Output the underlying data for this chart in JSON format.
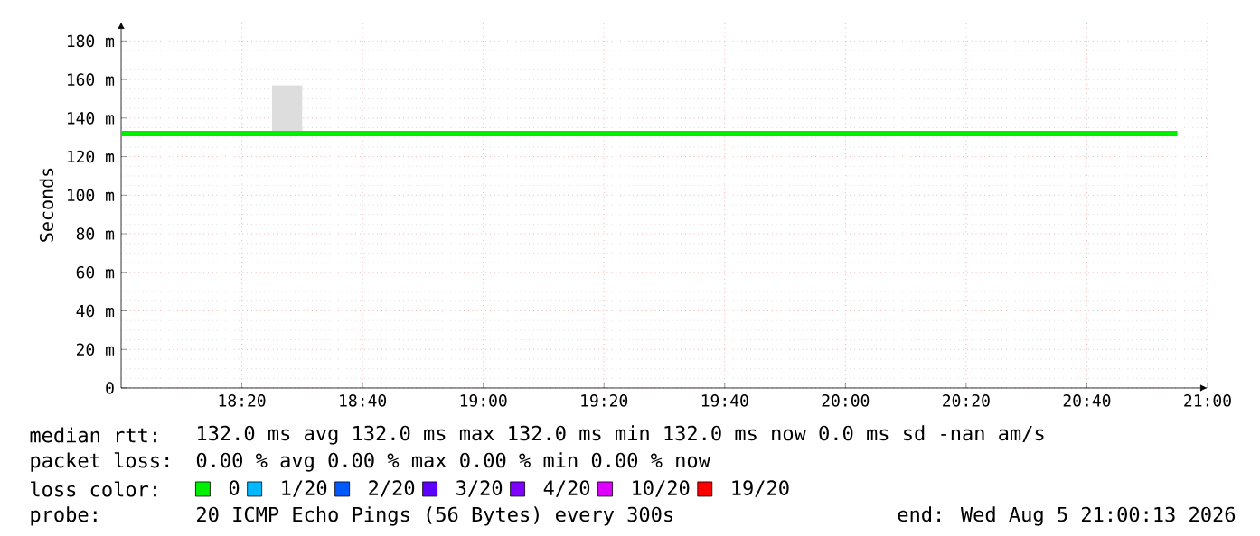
{
  "chart_data": {
    "type": "step",
    "ylabel": "Seconds",
    "x": [
      18.0,
      18.4167,
      18.5,
      20.9167
    ],
    "series": [
      {
        "name": "0",
        "color": "#00ee00",
        "values": [
          132,
          132,
          132,
          132
        ],
        "lower": [
          132,
          132,
          132,
          132
        ],
        "upper": [
          132,
          157,
          132,
          132
        ]
      },
      {
        "name": "1/20",
        "color": "#00b8ff",
        "values": [
          null,
          null,
          null,
          null
        ]
      },
      {
        "name": "2/20",
        "color": "#0059ff",
        "values": [
          null,
          null,
          null,
          null
        ]
      },
      {
        "name": "3/20",
        "color": "#5e00ff",
        "values": [
          null,
          null,
          null,
          null
        ]
      },
      {
        "name": "4/20",
        "color": "#7e00ff",
        "values": [
          null,
          null,
          null,
          null
        ]
      },
      {
        "name": "10/20",
        "color": "#dd00ff",
        "values": [
          null,
          null,
          null,
          null
        ]
      },
      {
        "name": "19/20",
        "color": "#ff0000",
        "values": [
          null,
          null,
          null,
          null
        ]
      }
    ],
    "legend_title": "loss color:",
    "legend": "bottom",
    "grid": true,
    "xlim": [
      18.0,
      21.0
    ],
    "xticks": [
      {
        "value": 18.3333,
        "label": "18:20"
      },
      {
        "value": 18.6667,
        "label": "18:40"
      },
      {
        "value": 19.0,
        "label": "19:00"
      },
      {
        "value": 19.3333,
        "label": "19:20"
      },
      {
        "value": 19.6667,
        "label": "19:40"
      },
      {
        "value": 20.0,
        "label": "20:00"
      },
      {
        "value": 20.3333,
        "label": "20:20"
      },
      {
        "value": 20.6667,
        "label": "20:40"
      },
      {
        "value": 21.0,
        "label": "21:00"
      }
    ],
    "ylim": [
      0,
      190
    ],
    "yticks": [
      0,
      {
        "value": 20,
        "label": "20 m"
      },
      {
        "value": 40,
        "label": "40 m"
      },
      {
        "value": 60,
        "label": "60 m"
      },
      {
        "value": 80,
        "label": "80 m"
      },
      {
        "value": 100,
        "label": "100 m"
      },
      {
        "value": 120,
        "label": "120 m"
      },
      {
        "value": 140,
        "label": "140 m"
      },
      {
        "value": 160,
        "label": "160 m"
      },
      {
        "value": 180,
        "label": "180 m"
      }
    ],
    "annotations": [
      "median rtt:",
      "132.0 ms avg  132.0 ms max  132.0 ms min  132.0 ms now  0.0 ms sd  -nan   am/s",
      "packet loss:",
      "0.00 % avg  0.00 % max  0.00 % min  0.00 % now",
      "probe:",
      "20 ICMP Echo Pings (56 Bytes) every 300s",
      "end: Wed Aug  5 21:00:13 2026"
    ]
  }
}
